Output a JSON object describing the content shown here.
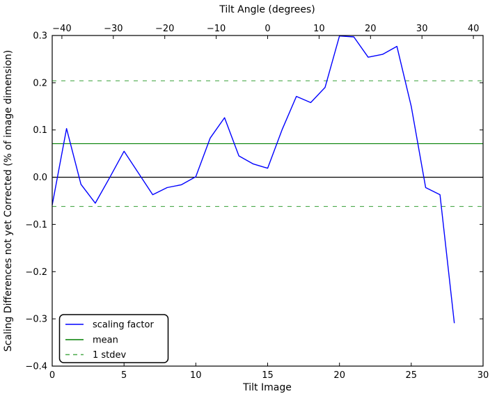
{
  "chart_data": {
    "type": "line",
    "top_axis": {
      "title": "Tilt Angle (degrees)",
      "min": -41.88,
      "max": 41.88,
      "ticks": [
        {
          "v": -40,
          "label": "−40"
        },
        {
          "v": -30,
          "label": "−30"
        },
        {
          "v": -20,
          "label": "−20"
        },
        {
          "v": -10,
          "label": "−10"
        },
        {
          "v": 0,
          "label": "0"
        },
        {
          "v": 10,
          "label": "10"
        },
        {
          "v": 20,
          "label": "20"
        },
        {
          "v": 30,
          "label": "30"
        },
        {
          "v": 40,
          "label": "40"
        }
      ]
    },
    "x_axis": {
      "title": "Tilt Image",
      "min": 0,
      "max": 30,
      "ticks": [
        {
          "v": 0,
          "label": "0"
        },
        {
          "v": 5,
          "label": "5"
        },
        {
          "v": 10,
          "label": "10"
        },
        {
          "v": 15,
          "label": "15"
        },
        {
          "v": 20,
          "label": "20"
        },
        {
          "v": 25,
          "label": "25"
        },
        {
          "v": 30,
          "label": "30"
        }
      ]
    },
    "y_axis": {
      "title": "Scaling Differences not yet Corrected (% of image dimension)",
      "min": -0.4,
      "max": 0.3,
      "ticks": [
        {
          "v": 0.3,
          "label": "0.3"
        },
        {
          "v": 0.2,
          "label": "0.2"
        },
        {
          "v": 0.1,
          "label": "0.1"
        },
        {
          "v": 0.0,
          "label": "0.0"
        },
        {
          "v": -0.1,
          "label": "−0.1"
        },
        {
          "v": -0.2,
          "label": "−0.2"
        },
        {
          "v": -0.3,
          "label": "−0.3"
        },
        {
          "v": -0.4,
          "label": "−0.4"
        }
      ]
    },
    "zero_line": {
      "y": 0,
      "color": "#000000"
    },
    "series": {
      "scaling_factor": {
        "name": "scaling factor",
        "color": "#0000ff",
        "x": [
          0,
          1,
          2,
          3,
          4,
          5,
          6,
          7,
          8,
          9,
          10,
          11,
          12,
          13,
          14,
          15,
          16,
          17,
          18,
          19,
          20,
          21,
          22,
          23,
          24,
          25,
          26,
          27,
          28
        ],
        "values": [
          -0.059,
          0.103,
          -0.015,
          -0.055,
          -0.001,
          0.055,
          0.009,
          -0.037,
          -0.022,
          -0.016,
          0.001,
          0.083,
          0.126,
          0.045,
          0.028,
          0.019,
          0.1,
          0.171,
          0.158,
          0.19,
          0.299,
          0.297,
          0.254,
          0.26,
          0.277,
          0.15,
          -0.022,
          -0.037,
          -0.309
        ]
      },
      "mean": {
        "name": "mean",
        "color": "#007f00",
        "value": 0.071
      },
      "stdev": {
        "name": "1 stdev",
        "color": "#4aa94a",
        "dashed": true,
        "values": [
          0.204,
          -0.062
        ]
      }
    },
    "legend": {
      "position": "lower left"
    }
  }
}
